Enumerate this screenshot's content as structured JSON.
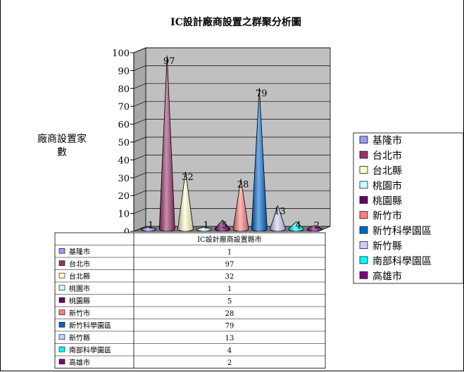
{
  "chart_data": {
    "type": "bar",
    "style": "3d-cone",
    "title": "IC設計廠商設置之群聚分析圖",
    "ylabel": "廠商設置家數",
    "ylabel_lines": [
      "廠商設置家",
      "數"
    ],
    "xlabel": "",
    "series_header": "IC設計廠商設置縣市",
    "ylim": [
      0,
      100
    ],
    "yticks": [
      0,
      10,
      20,
      30,
      40,
      50,
      60,
      70,
      80,
      90,
      100
    ],
    "legend_position": "right",
    "grid": true,
    "series": [
      {
        "name": "基隆市",
        "value": 1,
        "color": "#9999ff"
      },
      {
        "name": "台北市",
        "value": 97,
        "color": "#993366"
      },
      {
        "name": "台北縣",
        "value": 32,
        "color": "#ffffcc"
      },
      {
        "name": "桃園市",
        "value": 1,
        "color": "#ccffff"
      },
      {
        "name": "桃園縣",
        "value": 5,
        "color": "#660066"
      },
      {
        "name": "新竹市",
        "value": 28,
        "color": "#ff8080"
      },
      {
        "name": "新竹科學園區",
        "value": 79,
        "color": "#0066cc"
      },
      {
        "name": "新竹縣",
        "value": 13,
        "color": "#ccccff"
      },
      {
        "name": "南部科學園區",
        "value": 4,
        "color": "#00ffff"
      },
      {
        "name": "高雄市",
        "value": 2,
        "color": "#800080"
      }
    ]
  }
}
